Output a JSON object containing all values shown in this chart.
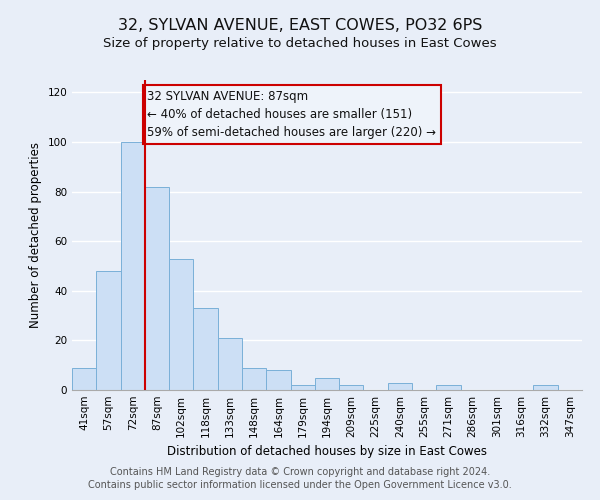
{
  "title": "32, SYLVAN AVENUE, EAST COWES, PO32 6PS",
  "subtitle": "Size of property relative to detached houses in East Cowes",
  "xlabel": "Distribution of detached houses by size in East Cowes",
  "ylabel": "Number of detached properties",
  "bar_labels": [
    "41sqm",
    "57sqm",
    "72sqm",
    "87sqm",
    "102sqm",
    "118sqm",
    "133sqm",
    "148sqm",
    "164sqm",
    "179sqm",
    "194sqm",
    "209sqm",
    "225sqm",
    "240sqm",
    "255sqm",
    "271sqm",
    "286sqm",
    "301sqm",
    "316sqm",
    "332sqm",
    "347sqm"
  ],
  "bar_values": [
    9,
    48,
    100,
    82,
    53,
    33,
    21,
    9,
    8,
    2,
    5,
    2,
    0,
    3,
    0,
    2,
    0,
    0,
    0,
    2,
    0
  ],
  "bar_color": "#ccdff5",
  "bar_edgecolor": "#7ab0d8",
  "vline_x_index": 3,
  "vline_color": "#cc0000",
  "annotation_lines": [
    "32 SYLVAN AVENUE: 87sqm",
    "← 40% of detached houses are smaller (151)",
    "59% of semi-detached houses are larger (220) →"
  ],
  "annotation_box_edgecolor": "#cc0000",
  "annotation_box_facecolor": "#eef3fa",
  "ylim": [
    0,
    125
  ],
  "yticks": [
    0,
    20,
    40,
    60,
    80,
    100,
    120
  ],
  "footer_lines": [
    "Contains HM Land Registry data © Crown copyright and database right 2024.",
    "Contains public sector information licensed under the Open Government Licence v3.0."
  ],
  "background_color": "#e8eef8",
  "grid_color": "#ffffff",
  "title_fontsize": 11.5,
  "subtitle_fontsize": 9.5,
  "axis_label_fontsize": 8.5,
  "tick_fontsize": 7.5,
  "annotation_fontsize": 8.5,
  "footer_fontsize": 7
}
